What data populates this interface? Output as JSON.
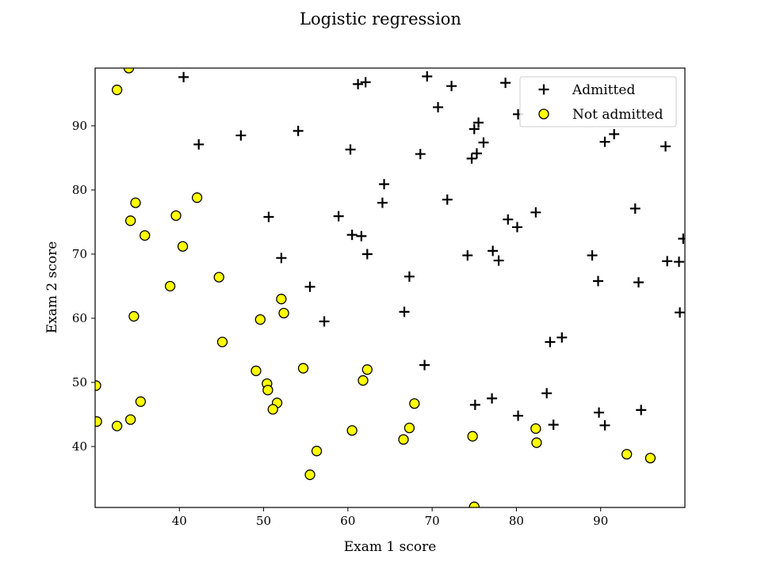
{
  "chart_data": {
    "type": "scatter",
    "title": "Logistic regression",
    "xlabel": "Exam 1 score",
    "ylabel": "Exam 2 score",
    "xlim": [
      30,
      100
    ],
    "ylim": [
      30.5,
      99
    ],
    "xticks": [
      40,
      50,
      60,
      70,
      80,
      90
    ],
    "yticks": [
      40,
      50,
      60,
      70,
      80,
      90
    ],
    "grid": false,
    "legend_position": "top-right",
    "series": [
      {
        "name": "Admitted",
        "marker": "plus",
        "color": "#000000",
        "points": [
          [
            40.5,
            97.6
          ],
          [
            61.2,
            96.5
          ],
          [
            62.1,
            96.8
          ],
          [
            69.4,
            97.7
          ],
          [
            72.3,
            96.2
          ],
          [
            78.7,
            96.7
          ],
          [
            70.7,
            92.9
          ],
          [
            80.2,
            91.8
          ],
          [
            75.0,
            89.5
          ],
          [
            75.5,
            90.5
          ],
          [
            74.7,
            84.9
          ],
          [
            75.3,
            85.7
          ],
          [
            76.1,
            87.4
          ],
          [
            68.6,
            85.6
          ],
          [
            60.3,
            86.3
          ],
          [
            42.3,
            87.1
          ],
          [
            47.3,
            88.5
          ],
          [
            54.1,
            89.2
          ],
          [
            90.5,
            87.5
          ],
          [
            91.6,
            88.7
          ],
          [
            97.7,
            86.8
          ],
          [
            64.3,
            80.9
          ],
          [
            64.1,
            78.0
          ],
          [
            71.8,
            78.5
          ],
          [
            82.3,
            76.5
          ],
          [
            94.1,
            77.1
          ],
          [
            50.6,
            75.8
          ],
          [
            58.9,
            75.9
          ],
          [
            79.0,
            75.4
          ],
          [
            80.1,
            74.2
          ],
          [
            60.5,
            73.0
          ],
          [
            61.6,
            72.8
          ],
          [
            99.8,
            72.4
          ],
          [
            52.1,
            69.4
          ],
          [
            62.3,
            70.0
          ],
          [
            74.2,
            69.8
          ],
          [
            77.2,
            70.5
          ],
          [
            77.9,
            69.0
          ],
          [
            89.0,
            69.8
          ],
          [
            97.9,
            68.9
          ],
          [
            99.3,
            68.8
          ],
          [
            67.3,
            66.5
          ],
          [
            89.7,
            65.8
          ],
          [
            94.5,
            65.6
          ],
          [
            55.5,
            64.9
          ],
          [
            66.7,
            61.0
          ],
          [
            57.2,
            59.5
          ],
          [
            99.4,
            60.9
          ],
          [
            85.4,
            57.0
          ],
          [
            84.0,
            56.3
          ],
          [
            69.1,
            52.7
          ],
          [
            83.6,
            48.3
          ],
          [
            77.1,
            47.5
          ],
          [
            75.1,
            46.5
          ],
          [
            80.2,
            44.8
          ],
          [
            84.4,
            43.4
          ],
          [
            89.8,
            45.3
          ],
          [
            90.5,
            43.3
          ],
          [
            94.8,
            45.7
          ]
        ]
      },
      {
        "name": "Not admitted",
        "marker": "circle",
        "color": "#ffff00",
        "edgecolor": "#000000",
        "points": [
          [
            34.0,
            99.0
          ],
          [
            32.6,
            95.6
          ],
          [
            34.8,
            78.0
          ],
          [
            42.1,
            78.8
          ],
          [
            39.6,
            76.0
          ],
          [
            34.2,
            75.2
          ],
          [
            35.9,
            72.9
          ],
          [
            40.4,
            71.2
          ],
          [
            44.7,
            66.4
          ],
          [
            38.9,
            65.0
          ],
          [
            52.1,
            63.0
          ],
          [
            49.6,
            59.8
          ],
          [
            52.4,
            60.8
          ],
          [
            34.6,
            60.3
          ],
          [
            45.1,
            56.3
          ],
          [
            49.1,
            51.8
          ],
          [
            54.7,
            52.2
          ],
          [
            62.3,
            52.0
          ],
          [
            30.1,
            49.5
          ],
          [
            50.4,
            49.8
          ],
          [
            50.5,
            48.8
          ],
          [
            61.8,
            50.3
          ],
          [
            35.4,
            47.0
          ],
          [
            51.6,
            46.8
          ],
          [
            51.1,
            45.8
          ],
          [
            67.9,
            46.7
          ],
          [
            34.2,
            44.2
          ],
          [
            30.2,
            43.9
          ],
          [
            32.6,
            43.2
          ],
          [
            60.5,
            42.5
          ],
          [
            67.3,
            42.9
          ],
          [
            82.3,
            42.8
          ],
          [
            74.8,
            41.6
          ],
          [
            66.6,
            41.1
          ],
          [
            82.4,
            40.6
          ],
          [
            56.3,
            39.3
          ],
          [
            93.1,
            38.8
          ],
          [
            95.9,
            38.2
          ],
          [
            55.5,
            35.6
          ],
          [
            75.0,
            30.6
          ]
        ]
      }
    ]
  }
}
